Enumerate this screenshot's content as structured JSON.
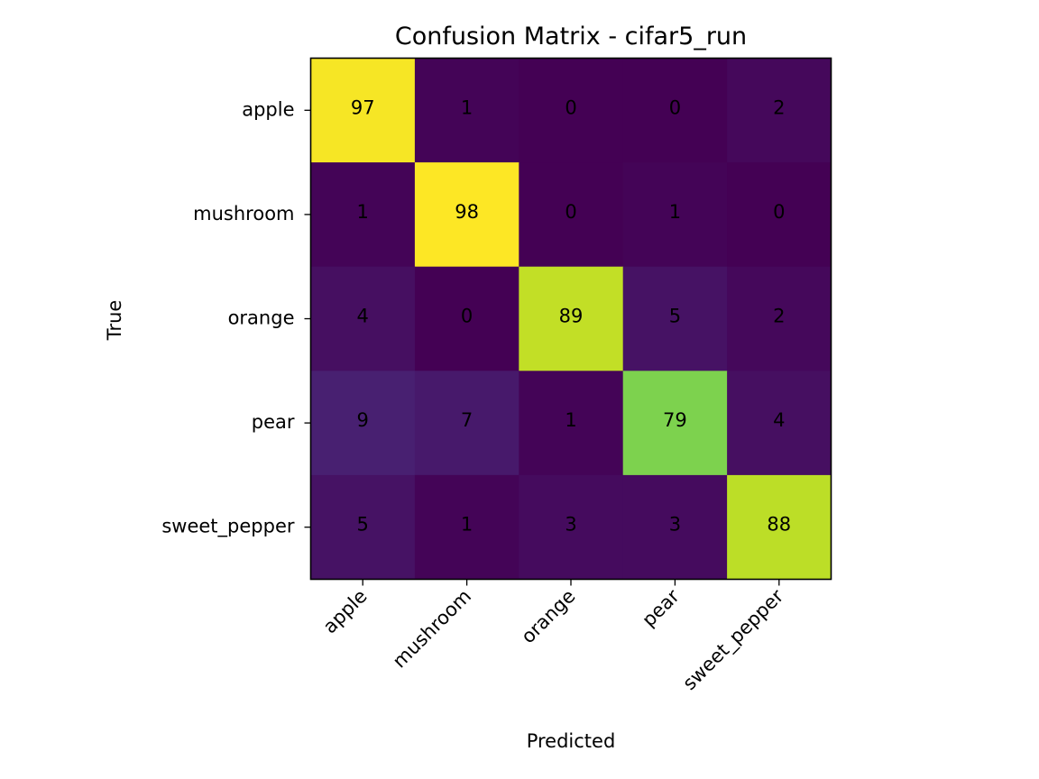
{
  "chart_data": {
    "type": "heatmap",
    "title": "Confusion Matrix - cifar5_run",
    "xlabel": "Predicted",
    "ylabel": "True",
    "x_categories": [
      "apple",
      "mushroom",
      "orange",
      "pear",
      "sweet_pepper"
    ],
    "y_categories": [
      "apple",
      "mushroom",
      "orange",
      "pear",
      "sweet_pepper"
    ],
    "values": [
      [
        97,
        1,
        0,
        0,
        2
      ],
      [
        1,
        98,
        0,
        1,
        0
      ],
      [
        4,
        0,
        89,
        5,
        2
      ],
      [
        9,
        7,
        1,
        79,
        4
      ],
      [
        5,
        1,
        3,
        3,
        88
      ]
    ],
    "value_range": [
      0,
      98
    ],
    "colormap": "viridis",
    "grid": false,
    "legend": "none"
  }
}
